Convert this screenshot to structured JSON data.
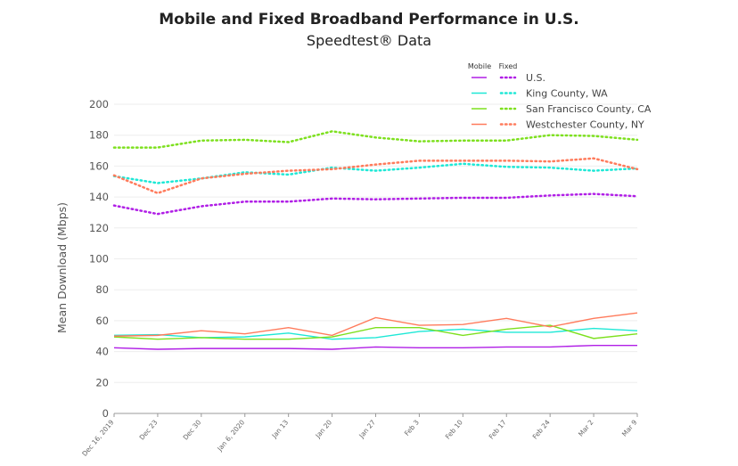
{
  "chart_data": {
    "type": "line",
    "title": "Mobile and Fixed Broadband Performance in U.S.",
    "subtitle": "Speedtest® Data",
    "ylabel": "Mean Download (Mbps)",
    "xlabel": "",
    "ylim": [
      0,
      200
    ],
    "yticks": [
      0,
      20,
      40,
      60,
      80,
      100,
      120,
      140,
      160,
      180,
      200
    ],
    "grid": true,
    "legend_position": "top-right",
    "legend_headers": {
      "mobile": "Mobile",
      "fixed": "Fixed"
    },
    "categories": [
      "Dec 16, 2019",
      "Dec 23",
      "Dec 30",
      "Jan 6, 2020",
      "Jan 13",
      "Jan 20",
      "Jan 27",
      "Feb 3",
      "Feb 10",
      "Feb 17",
      "Feb 24",
      "Mar 2",
      "Mar 9"
    ],
    "series": [
      {
        "name": "U.S.",
        "color": "#b01ee6",
        "mobile": [
          42.5,
          41.5,
          42,
          42,
          42,
          41.5,
          43,
          42.5,
          42.5,
          43,
          43,
          44,
          44
        ],
        "fixed": [
          134.5,
          129,
          134,
          137,
          137,
          139,
          138.5,
          139,
          139.5,
          139.5,
          141,
          142,
          140.5
        ]
      },
      {
        "name": "King County, WA",
        "color": "#1ee8d6",
        "mobile": [
          50.5,
          51,
          49,
          49.5,
          52,
          48,
          49,
          53,
          54.5,
          52.5,
          52.5,
          55,
          53.5
        ],
        "fixed": [
          153.5,
          149,
          152,
          156,
          154.5,
          159,
          157,
          159,
          161.5,
          159.5,
          159,
          157,
          158.5
        ]
      },
      {
        "name": "San Francisco County, CA",
        "color": "#7de01e",
        "mobile": [
          49.5,
          48,
          49,
          48,
          48,
          49.5,
          55.5,
          55.5,
          50.5,
          54.5,
          57,
          48.5,
          51.5
        ],
        "fixed": [
          172,
          172,
          176.5,
          177,
          175.5,
          182.5,
          178.5,
          176,
          176.5,
          176.5,
          180,
          179.5,
          177
        ]
      },
      {
        "name": "Westchester County, NY",
        "color": "#ff7b5c",
        "mobile": [
          50,
          50.5,
          53.5,
          51.5,
          55.5,
          50.5,
          62,
          57,
          57.5,
          61.5,
          56,
          61.5,
          65
        ],
        "fixed": [
          154,
          142.5,
          152,
          155,
          157,
          158,
          161,
          163.5,
          163.5,
          163.5,
          163,
          165,
          158
        ]
      }
    ]
  }
}
